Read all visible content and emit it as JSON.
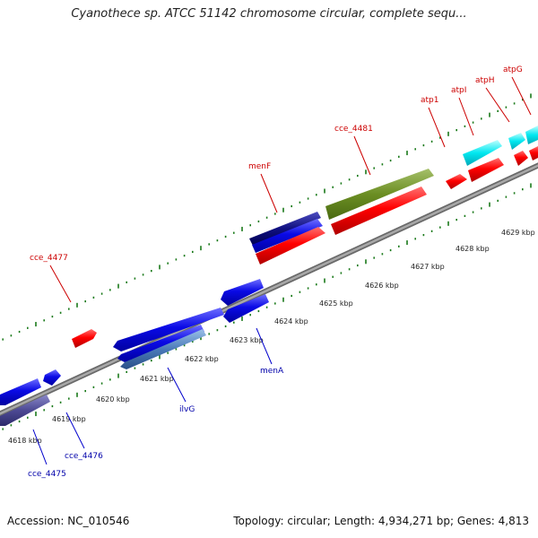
{
  "title": "Cyanothece sp. ATCC 51142 chromosome circular, complete sequ...",
  "footer": {
    "accession": "Accession: NC_010546",
    "topology": "Topology: circular; Length: 4,934,271 bp; Genes: 4,813"
  },
  "colors": {
    "backbone": "#8a8a8a",
    "tick": "#1a7a1a",
    "label_forward": "#cc0000",
    "label_reverse": "#0000aa",
    "leader_forward": "#cc0000",
    "leader_reverse": "#0000cc"
  },
  "kbp_ticks": [
    {
      "label": "4618 kbp"
    },
    {
      "label": "4619 kbp"
    },
    {
      "label": "4620 kbp"
    },
    {
      "label": "4621 kbp"
    },
    {
      "label": "4622 kbp"
    },
    {
      "label": "4623 kbp"
    },
    {
      "label": "4624 kbp"
    },
    {
      "label": "4625 kbp"
    },
    {
      "label": "4626 kbp"
    },
    {
      "label": "4627 kbp"
    },
    {
      "label": "4628 kbp"
    },
    {
      "label": "4629 kbp"
    }
  ],
  "gene_labels": [
    {
      "text": "cce_4477",
      "strand": "forward"
    },
    {
      "text": "menF",
      "strand": "forward"
    },
    {
      "text": "cce_4481",
      "strand": "forward"
    },
    {
      "text": "atp1",
      "strand": "forward"
    },
    {
      "text": "atpI",
      "strand": "forward"
    },
    {
      "text": "atpH",
      "strand": "forward"
    },
    {
      "text": "atpG",
      "strand": "forward"
    },
    {
      "text": "cce_4475",
      "strand": "reverse"
    },
    {
      "text": "cce_4476",
      "strand": "reverse"
    },
    {
      "text": "ilvG",
      "strand": "reverse"
    },
    {
      "text": "menA",
      "strand": "reverse"
    }
  ]
}
